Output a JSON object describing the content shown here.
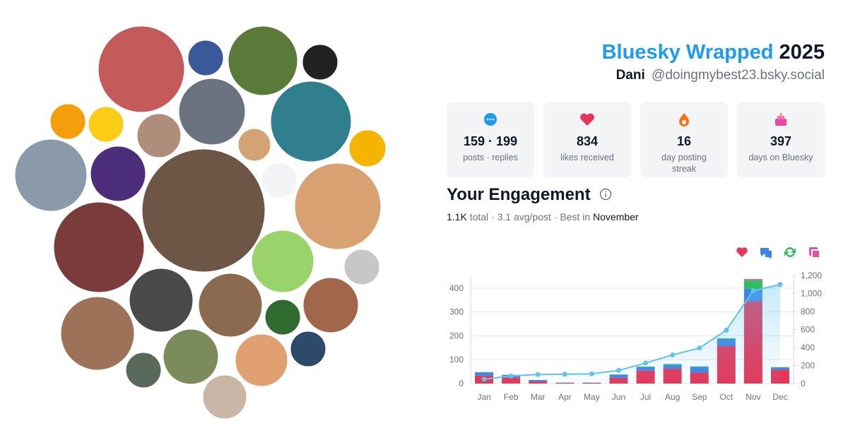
{
  "header": {
    "title": "Bluesky Wrapped",
    "year": "2025",
    "name": "Dani",
    "handle": "@doingmybest23.bsky.social"
  },
  "stats": [
    {
      "value": "159 · 199",
      "label": "posts · replies"
    },
    {
      "value": "834",
      "label": "likes received"
    },
    {
      "value": "16",
      "label": "day posting streak"
    },
    {
      "value": "397",
      "label": "days on Bluesky"
    }
  ],
  "engagement": {
    "title": "Your Engagement",
    "total": "1.1K",
    "summary": "total · 3.1 avg/post · Best in",
    "best": "November"
  },
  "chart_data": {
    "type": "bar",
    "stacked": true,
    "grid": true,
    "categories": [
      "Jan",
      "Feb",
      "Mar",
      "Apr",
      "May",
      "Jun",
      "Jul",
      "Aug",
      "Sep",
      "Oct",
      "Nov",
      "Dec"
    ],
    "series": [
      {
        "color": "#e5375a",
        "values": [
          33,
          26,
          9,
          3,
          3,
          24,
          54,
          62,
          46,
          157,
          345,
          58
        ]
      },
      {
        "color": "#3d86e6",
        "values": [
          14,
          10,
          6,
          1,
          1,
          13,
          14,
          17,
          24,
          30,
          52,
          9
        ]
      },
      {
        "color": "#2fbf5f",
        "values": [
          1,
          1,
          0,
          0,
          0,
          1,
          3,
          3,
          2,
          3,
          36,
          2
        ]
      },
      {
        "color": "#e54fa8",
        "values": [
          0,
          0,
          0,
          0,
          0,
          0,
          0,
          0,
          0,
          0,
          5,
          0
        ]
      },
      {
        "color": "#5fc3ee",
        "axis": "y2",
        "values": [
          48,
          85,
          100,
          104,
          108,
          146,
          228,
          318,
          394,
          592,
          1030,
          1100
        ]
      }
    ],
    "ylim": [
      0,
      453
    ],
    "yticks": [
      0,
      100,
      200,
      300,
      400
    ],
    "y2lim": [
      0,
      1200
    ],
    "y2ticks": [
      0,
      200,
      400,
      600,
      800,
      {
        "value": 1000,
        "label": "1,000"
      },
      {
        "value": 1200,
        "label": "1,200"
      }
    ]
  }
}
